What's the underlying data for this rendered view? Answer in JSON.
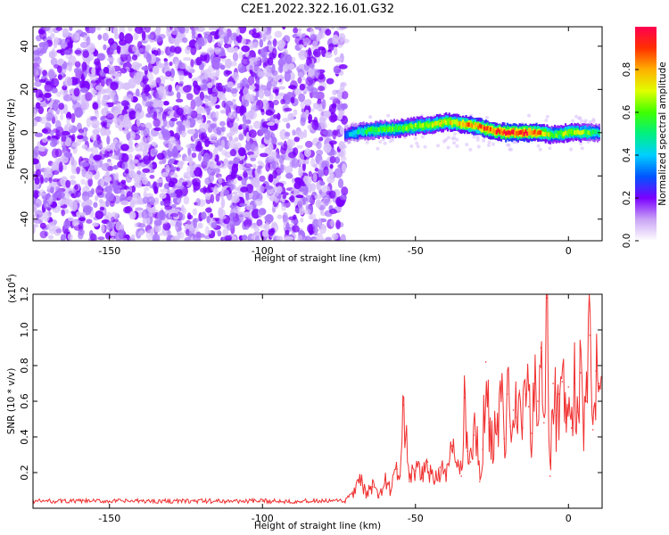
{
  "title": "C2E1.2022.322.16.01.G32",
  "chart_data": [
    {
      "type": "heatmap",
      "title": "C2E1.2022.322.16.01.G32",
      "xlabel": "Height of straight line (km)",
      "ylabel": "Frequency (Hz)",
      "xlim": [
        -175,
        11
      ],
      "ylim": [
        -50,
        49
      ],
      "xticks": [
        -150,
        -100,
        -50,
        0
      ],
      "yticks": [
        40,
        20,
        0,
        -20,
        -40
      ],
      "colorbar": {
        "label": "Normalized spectral amplitude",
        "range": [
          0,
          1
        ],
        "ticks": [
          "0.0",
          "0.2",
          "0.4",
          "0.6",
          "0.8"
        ],
        "colormap": "rainbow",
        "colors": [
          "#ffffff",
          "#c9a3f5",
          "#7a00ff",
          "#0055ff",
          "#00d0ff",
          "#00f080",
          "#40ff00",
          "#e0ff00",
          "#ffb000",
          "#ff3000",
          "#ff0050"
        ]
      },
      "noise_region": {
        "x_range": [
          -175,
          -73
        ],
        "f_range": [
          -50,
          49
        ],
        "amplitude": [
          0.0,
          0.2
        ]
      },
      "ridge": {
        "description_values": true,
        "x": [
          -73,
          -70,
          -65,
          -60,
          -55,
          -50,
          -45,
          -40,
          -35,
          -30,
          -25,
          -20,
          -15,
          -10,
          -5,
          0,
          5,
          10
        ],
        "frequency": [
          -1,
          0,
          1,
          1.5,
          2,
          3,
          3.5,
          5,
          4,
          3,
          1,
          0,
          0,
          0,
          -1,
          0,
          0,
          0
        ],
        "amplitude": [
          0.3,
          0.45,
          0.55,
          0.6,
          0.62,
          0.65,
          0.7,
          0.72,
          0.8,
          0.85,
          0.9,
          0.95,
          0.95,
          0.9,
          0.6,
          0.7,
          0.65,
          0.5
        ]
      }
    },
    {
      "type": "line",
      "xlabel": "Height of straight line (km)",
      "ylabel": "SNR (10 * v/v)",
      "multiplier_label": "(x10",
      "multiplier_exp": "4",
      "multiplier_close": ")",
      "xlim": [
        -175,
        11
      ],
      "ylim": [
        0,
        12000
      ],
      "xticks": [
        -150,
        -100,
        -50,
        0
      ],
      "yticks": [
        {
          "value": 2000,
          "label": "0.2"
        },
        {
          "value": 4000,
          "label": "0.4"
        },
        {
          "value": 6000,
          "label": "0.6"
        },
        {
          "value": 8000,
          "label": "0.8"
        },
        {
          "value": 10000,
          "label": "1.0"
        },
        {
          "value": 12000,
          "label": "1.2"
        }
      ],
      "color": "#f03030",
      "series": [
        {
          "x": [
            -175,
            -150,
            -125,
            -100,
            -80,
            -73,
            -70,
            -68,
            -66,
            -64,
            -62,
            -60,
            -58,
            -56,
            -55,
            -54,
            -52,
            -50,
            -48,
            -46,
            -44,
            -42,
            -40,
            -38,
            -36,
            -35,
            -34,
            -33,
            -32,
            -31,
            -30,
            -29,
            -28,
            -27,
            -26,
            -25,
            -24,
            -23,
            -22,
            -21,
            -20,
            -19,
            -18,
            -17,
            -16,
            -15,
            -14,
            -13,
            -12,
            -11,
            -10,
            -9,
            -8,
            -7,
            -6,
            -5,
            -4,
            -3,
            -2,
            -1,
            0,
            1,
            2,
            3,
            4,
            5,
            6,
            7,
            8,
            9,
            10,
            11
          ],
          "y": [
            400,
            400,
            400,
            400,
            400,
            400,
            900,
            1500,
            800,
            1200,
            600,
            1600,
            1000,
            2200,
            1800,
            5800,
            1500,
            2100,
            1700,
            2600,
            1500,
            2300,
            1600,
            3500,
            2400,
            1800,
            6200,
            3200,
            2600,
            4100,
            3800,
            1500,
            3300,
            8200,
            4800,
            3600,
            5000,
            4400,
            6200,
            3900,
            6400,
            4600,
            5500,
            5100,
            6600,
            4500,
            6400,
            5700,
            4200,
            7000,
            6000,
            9000,
            4800,
            11800,
            1800,
            7000,
            5200,
            6400,
            7100,
            4800,
            6800,
            4500,
            7000,
            5400,
            7600,
            4600,
            6000,
            9700,
            4400,
            7700,
            7000,
            7500
          ]
        }
      ]
    }
  ]
}
